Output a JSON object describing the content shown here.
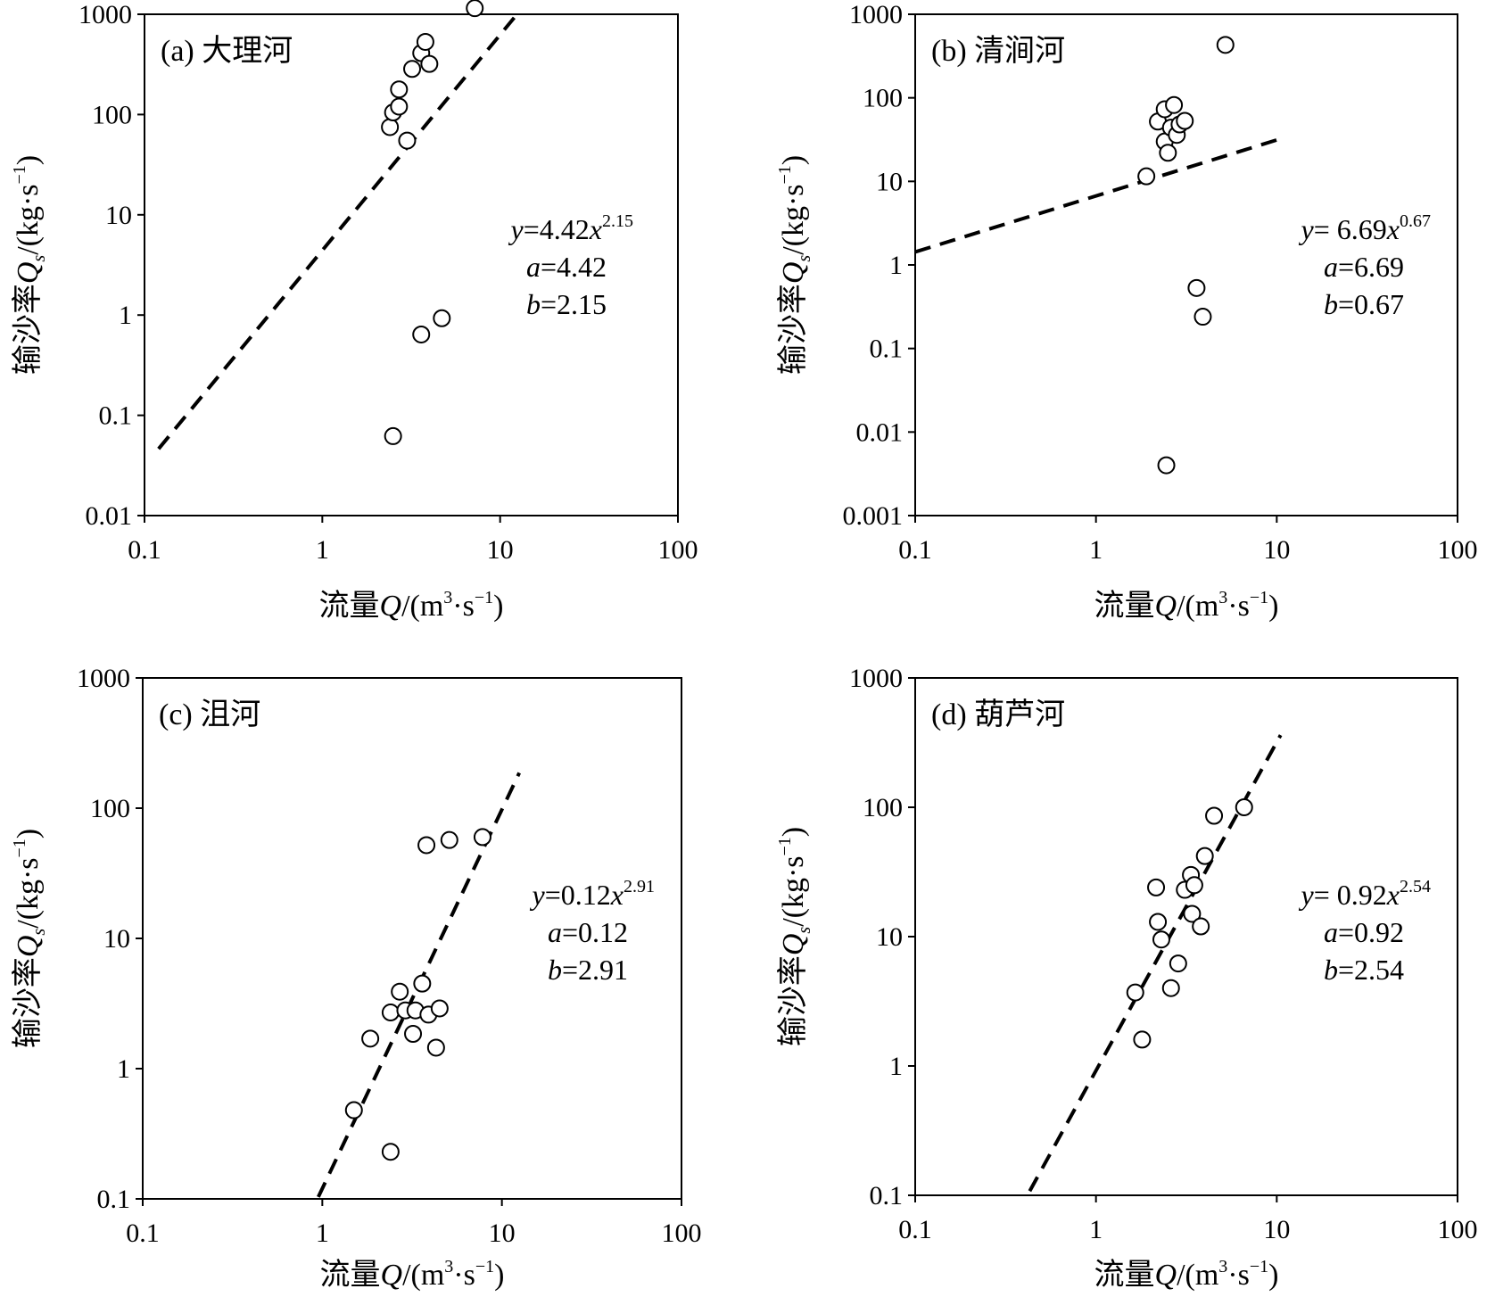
{
  "figure": {
    "axis_labels": {
      "x_prefix": "流量",
      "x_var": "Q",
      "x_unit_a": "/(m",
      "x_unit_exp1": "3",
      "x_unit_b": "·s",
      "x_unit_exp2": "−1",
      "x_unit_c": ")",
      "y_prefix": "输沙率",
      "y_var": "Q",
      "y_var_sub": "s",
      "y_unit_a": "/(kg·s",
      "y_unit_exp": "−1",
      "y_unit_c": ")"
    }
  },
  "chart_data": [
    {
      "type": "scatter",
      "title": "(a) 大理河",
      "x_scale": "log",
      "y_scale": "log",
      "xlim": [
        0.1,
        100
      ],
      "ylim": [
        0.01,
        1000
      ],
      "x_ticks": [
        "0.1",
        "1",
        "10",
        "100"
      ],
      "y_ticks": [
        "0.01",
        "0.1",
        "1",
        "10",
        "100",
        "1000"
      ],
      "points": [
        [
          2.4,
          75
        ],
        [
          2.5,
          105
        ],
        [
          2.7,
          120
        ],
        [
          2.7,
          178
        ],
        [
          3.0,
          55
        ],
        [
          3.2,
          285
        ],
        [
          3.6,
          410
        ],
        [
          3.8,
          530
        ],
        [
          4.0,
          320
        ],
        [
          7.2,
          1150
        ],
        [
          3.6,
          0.64
        ],
        [
          4.7,
          0.93
        ],
        [
          2.5,
          0.062
        ]
      ],
      "fit": {
        "a": 4.42,
        "b": 2.15,
        "x_range": [
          0.12,
          12
        ]
      },
      "equation": {
        "lhs": "y",
        "eq": "=4.42",
        "var": "x",
        "exp": "2.15",
        "a_label": "a",
        "a_text": "=4.42",
        "b_label": "b",
        "b_text": "=2.15"
      },
      "legend": "none",
      "grid": false
    },
    {
      "type": "scatter",
      "title": "(b) 清涧河",
      "x_scale": "log",
      "y_scale": "log",
      "xlim": [
        0.1,
        100
      ],
      "ylim": [
        0.001,
        1000
      ],
      "x_ticks": [
        "0.1",
        "1",
        "10",
        "100"
      ],
      "y_ticks": [
        "0.001",
        "0.01",
        "0.1",
        "1",
        "10",
        "100",
        "1000"
      ],
      "points": [
        [
          1.9,
          11.5
        ],
        [
          2.2,
          52
        ],
        [
          2.4,
          73
        ],
        [
          2.4,
          30
        ],
        [
          2.5,
          22
        ],
        [
          2.6,
          44
        ],
        [
          2.7,
          82
        ],
        [
          2.8,
          36
        ],
        [
          2.9,
          48
        ],
        [
          3.1,
          53
        ],
        [
          5.2,
          430
        ],
        [
          3.6,
          0.53
        ],
        [
          3.9,
          0.24
        ],
        [
          2.45,
          0.004
        ]
      ],
      "fit": {
        "a": 6.69,
        "b": 0.67,
        "x_range": [
          0.1,
          10
        ]
      },
      "equation": {
        "lhs": "y",
        "eq": "= 6.69",
        "var": "x",
        "exp": "0.67",
        "a_label": "a",
        "a_text": "=6.69",
        "b_label": "b",
        "b_text": "=0.67"
      },
      "legend": "none",
      "grid": false
    },
    {
      "type": "scatter",
      "title": "(c) 沮河",
      "x_scale": "log",
      "y_scale": "log",
      "xlim": [
        0.1,
        100
      ],
      "ylim": [
        0.1,
        1000
      ],
      "x_ticks": [
        "0.1",
        "1",
        "10",
        "100"
      ],
      "y_ticks": [
        "0.1",
        "1",
        "10",
        "100",
        "1000"
      ],
      "points": [
        [
          1.5,
          0.48
        ],
        [
          1.85,
          1.7
        ],
        [
          2.4,
          2.7
        ],
        [
          2.7,
          3.9
        ],
        [
          2.9,
          2.8
        ],
        [
          3.2,
          1.85
        ],
        [
          3.3,
          2.8
        ],
        [
          3.6,
          4.5
        ],
        [
          3.9,
          2.6
        ],
        [
          4.3,
          1.45
        ],
        [
          4.5,
          2.9
        ],
        [
          3.8,
          52
        ],
        [
          5.1,
          57
        ],
        [
          7.8,
          60
        ],
        [
          2.4,
          0.23
        ]
      ],
      "fit": {
        "a": 0.12,
        "b": 2.91,
        "x_range": [
          0.95,
          12.5
        ]
      },
      "equation": {
        "lhs": "y",
        "eq": "=0.12",
        "var": "x",
        "exp": "2.91",
        "a_label": "a",
        "a_text": "=0.12",
        "b_label": "b",
        "b_text": "=2.91"
      },
      "legend": "none",
      "grid": false
    },
    {
      "type": "scatter",
      "title": "(d) 葫芦河",
      "x_scale": "log",
      "y_scale": "log",
      "xlim": [
        0.1,
        100
      ],
      "ylim": [
        0.1,
        1000
      ],
      "x_ticks": [
        "0.1",
        "1",
        "10",
        "100"
      ],
      "y_ticks": [
        "0.1",
        "1",
        "10",
        "100",
        "1000"
      ],
      "points": [
        [
          1.65,
          3.7
        ],
        [
          1.8,
          1.6
        ],
        [
          2.15,
          24
        ],
        [
          2.2,
          13
        ],
        [
          2.3,
          9.5
        ],
        [
          2.6,
          4.0
        ],
        [
          2.85,
          6.2
        ],
        [
          3.1,
          23
        ],
        [
          3.35,
          30
        ],
        [
          3.4,
          15
        ],
        [
          3.5,
          25
        ],
        [
          3.8,
          12
        ],
        [
          4.0,
          42
        ],
        [
          4.5,
          86
        ],
        [
          6.6,
          100
        ]
      ],
      "fit": {
        "a": 0.92,
        "b": 2.54,
        "x_range": [
          0.43,
          10.5
        ]
      },
      "equation": {
        "lhs": "y",
        "eq": "= 0.92",
        "var": "x",
        "exp": "2.54",
        "a_label": "a",
        "a_text": "=0.92",
        "b_label": "b",
        "b_text": "=2.54"
      },
      "legend": "none",
      "grid": false
    }
  ]
}
